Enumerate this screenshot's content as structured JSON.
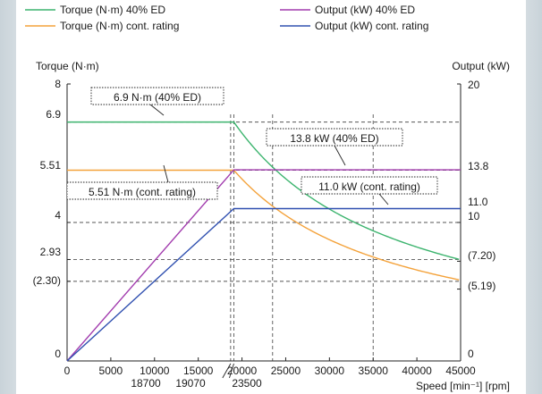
{
  "chart_data": {
    "type": "line",
    "x_axis": {
      "label": "Speed [min⁻¹] [rpm]",
      "range": [
        0,
        45000
      ],
      "ticks": [
        0,
        5000,
        10000,
        15000,
        20000,
        25000,
        30000,
        35000,
        40000,
        45000
      ],
      "tick_labels": [
        "0",
        "5000",
        "10000",
        "15000",
        "20000",
        "25000",
        "30000",
        "35000",
        "40000",
        "45000"
      ],
      "extra_labels": [
        {
          "value": 18700,
          "text": "18700"
        },
        {
          "value": 19070,
          "text": "19070"
        },
        {
          "value": 23500,
          "text": "23500"
        }
      ]
    },
    "y_left": {
      "label": "Torque (N·m)",
      "range": [
        0,
        8
      ],
      "ticks": [
        {
          "value": 0,
          "text": "0"
        },
        {
          "value": 2.3,
          "text": "(2.30)"
        },
        {
          "value": 2.93,
          "text": "2.93"
        },
        {
          "value": 4,
          "text": "4"
        },
        {
          "value": 5.51,
          "text": "5.51"
        },
        {
          "value": 6.9,
          "text": "6.9"
        },
        {
          "value": 8,
          "text": "8"
        }
      ]
    },
    "y_right": {
      "label": "Output (kW)",
      "range": [
        0,
        20
      ],
      "ticks": [
        {
          "value": 0,
          "text": "0"
        },
        {
          "value": 5.19,
          "text": "(5.19)"
        },
        {
          "value": 7.2,
          "text": "(7.20)"
        },
        {
          "value": 10,
          "text": "10"
        },
        {
          "value": 11.0,
          "text": "11.0"
        },
        {
          "value": 13.8,
          "text": "13.8"
        },
        {
          "value": 20,
          "text": "20"
        }
      ]
    },
    "grid": "dashed reference lines",
    "legend_position": "top",
    "series": [
      {
        "name": "Torque (N·m) 40% ED",
        "axis": "left",
        "color": "#3cb46e",
        "x": [
          0,
          19070,
          22000,
          25000,
          28000,
          31000,
          35000,
          40000,
          45000
        ],
        "y": [
          6.9,
          6.9,
          5.98,
          5.26,
          4.7,
          4.24,
          3.76,
          3.29,
          2.93
        ]
      },
      {
        "name": "Torque (N·m) cont. rating",
        "axis": "left",
        "color": "#f4a23a",
        "x": [
          0,
          19070,
          22000,
          25000,
          28000,
          31000,
          35000,
          40000,
          45000
        ],
        "y": [
          5.51,
          5.51,
          4.78,
          4.2,
          3.75,
          3.39,
          3.0,
          2.63,
          2.3
        ]
      },
      {
        "name": "Output (kW) 40% ED",
        "axis": "right",
        "color": "#a23cae",
        "x": [
          0,
          19070,
          45000
        ],
        "y": [
          0,
          13.8,
          13.8
        ]
      },
      {
        "name": "Output (kW) cont. rating",
        "axis": "right",
        "color": "#3050b0",
        "x": [
          0,
          19070,
          45000
        ],
        "y": [
          0,
          11.0,
          11.0
        ]
      }
    ],
    "annotations": [
      {
        "text": "6.9 N·m (40% ED)",
        "series_index": 0
      },
      {
        "text": "5.51 N·m (cont. rating)",
        "series_index": 1
      },
      {
        "text": "13.8 kW  (40% ED)",
        "series_index": 2
      },
      {
        "text": "11.0 kW (cont. rating)",
        "series_index": 3
      }
    ],
    "reference_lines": {
      "vertical": [
        18700,
        19070,
        23500,
        35000
      ],
      "horizontal_left": [
        2.3,
        2.93,
        4,
        5.51,
        6.9
      ]
    }
  }
}
